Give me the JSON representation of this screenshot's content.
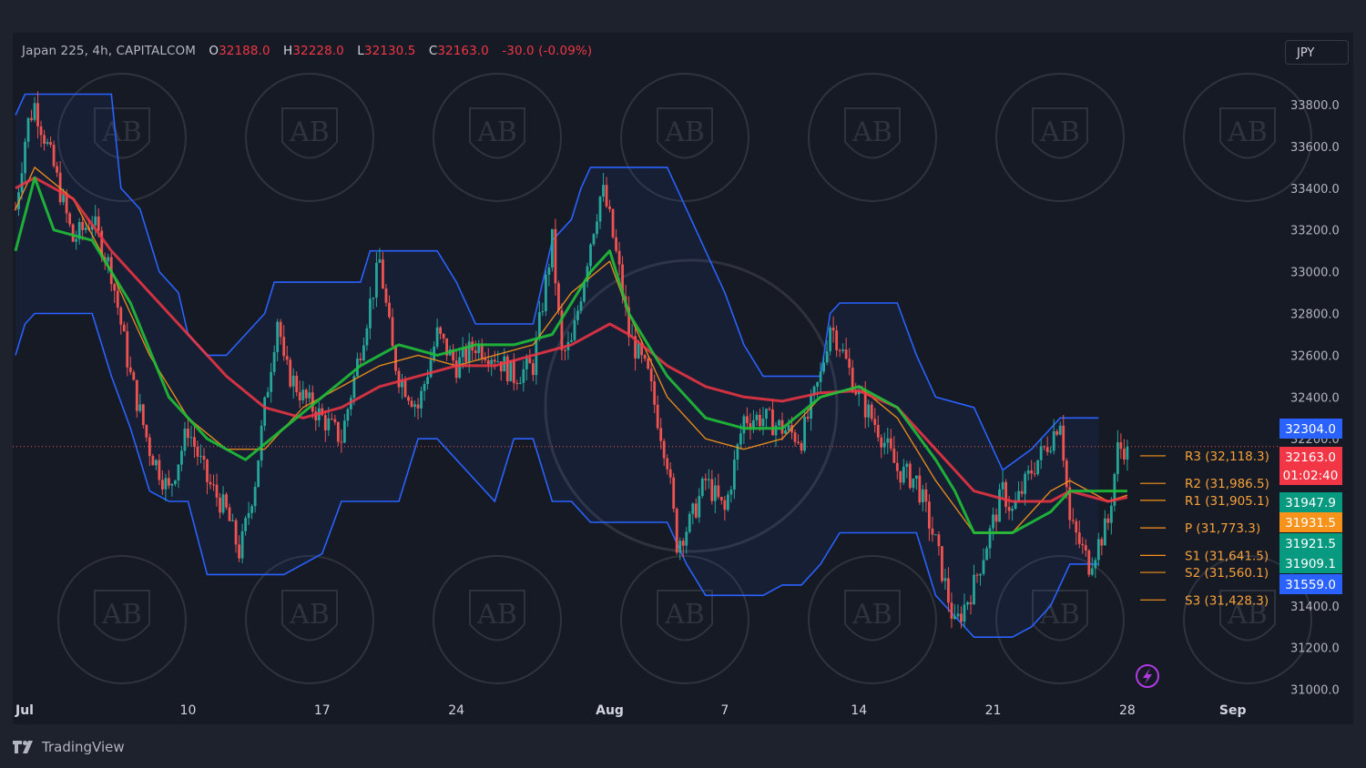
{
  "header": {
    "symbol": "Japan 225, 4h, CAPITALCOM",
    "o_label": "O",
    "o_value": "32188.0",
    "h_label": "H",
    "h_value": "32228.0",
    "l_label": "L",
    "l_value": "32130.5",
    "c_label": "C",
    "c_value": "32163.0",
    "change": "-30.0 (-0.09%)"
  },
  "currency_button": "JPY",
  "brand": "TradingView",
  "colors": {
    "background": "#161a25",
    "up": "#26a69a",
    "down": "#ef5350",
    "channel": "#2962ff",
    "ema_fast": "#089981",
    "ema_slow": "#f23645",
    "ma_orange": "#f7931a",
    "pivot": "#f7931a",
    "text": "#b2b5be"
  },
  "chart_data": {
    "type": "candlestick",
    "timeframe": "4h",
    "ylim": [
      31000,
      33900
    ],
    "y_ticks": [
      "33800.0",
      "33600.0",
      "33400.0",
      "33200.0",
      "33000.0",
      "32800.0",
      "32600.0",
      "32400.0",
      "32200.0",
      "32000.0",
      "31800.0",
      "31600.0",
      "31400.0",
      "31200.0",
      "31000.0"
    ],
    "x_ticks": [
      {
        "label": "Jul",
        "day": 0
      },
      {
        "label": "10",
        "day": 9
      },
      {
        "label": "17",
        "day": 16
      },
      {
        "label": "24",
        "day": 23
      },
      {
        "label": "Aug",
        "day": 31
      },
      {
        "label": "7",
        "day": 37
      },
      {
        "label": "14",
        "day": 44
      },
      {
        "label": "21",
        "day": 51
      },
      {
        "label": "28",
        "day": 58
      },
      {
        "label": "Sep",
        "day": 63.5
      }
    ],
    "path_points": [
      [
        0,
        33300
      ],
      [
        0.6,
        33700
      ],
      [
        1,
        33800
      ],
      [
        2,
        33500
      ],
      [
        3,
        33150
      ],
      [
        4,
        33250
      ],
      [
        5,
        33000
      ],
      [
        6,
        32500
      ],
      [
        7,
        32150
      ],
      [
        8,
        31950
      ],
      [
        9,
        32250
      ],
      [
        10,
        32000
      ],
      [
        11,
        31850
      ],
      [
        11.7,
        31650
      ],
      [
        12.5,
        32000
      ],
      [
        13,
        32350
      ],
      [
        13.7,
        32800
      ],
      [
        14,
        32550
      ],
      [
        15,
        32400
      ],
      [
        16,
        32300
      ],
      [
        17,
        32200
      ],
      [
        17.8,
        32550
      ],
      [
        18.5,
        32850
      ],
      [
        19,
        33050
      ],
      [
        19.7,
        32600
      ],
      [
        20,
        32500
      ],
      [
        21,
        32350
      ],
      [
        22,
        32700
      ],
      [
        23,
        32550
      ],
      [
        24,
        32650
      ],
      [
        25,
        32600
      ],
      [
        26,
        32500
      ],
      [
        27,
        32550
      ],
      [
        28,
        33150
      ],
      [
        28.5,
        32600
      ],
      [
        29,
        32650
      ],
      [
        30,
        33150
      ],
      [
        30.6,
        33400
      ],
      [
        31,
        33250
      ],
      [
        31.5,
        33000
      ],
      [
        32,
        32700
      ],
      [
        33,
        32500
      ],
      [
        34,
        32100
      ],
      [
        34.5,
        31700
      ],
      [
        35.2,
        31800
      ],
      [
        36,
        32000
      ],
      [
        37,
        31850
      ],
      [
        38,
        32300
      ],
      [
        39,
        32300
      ],
      [
        40,
        32250
      ],
      [
        41,
        32200
      ],
      [
        42,
        32500
      ],
      [
        42.5,
        32750
      ],
      [
        43,
        32650
      ],
      [
        44,
        32400
      ],
      [
        45,
        32250
      ],
      [
        46,
        32050
      ],
      [
        47,
        32000
      ],
      [
        48,
        31700
      ],
      [
        49,
        31300
      ],
      [
        50,
        31500
      ],
      [
        51,
        31800
      ],
      [
        51.5,
        31950
      ],
      [
        52,
        31850
      ],
      [
        53,
        32050
      ],
      [
        54,
        32200
      ],
      [
        54.5,
        32300
      ],
      [
        55,
        31800
      ],
      [
        56,
        31600
      ],
      [
        57,
        31800
      ],
      [
        57.5,
        32150
      ],
      [
        58,
        32163
      ]
    ],
    "ema_fast": [
      [
        0,
        33100
      ],
      [
        1,
        33450
      ],
      [
        2,
        33200
      ],
      [
        4,
        33150
      ],
      [
        6,
        32850
      ],
      [
        8,
        32400
      ],
      [
        10,
        32200
      ],
      [
        12,
        32100
      ],
      [
        14,
        32250
      ],
      [
        16,
        32400
      ],
      [
        18,
        32550
      ],
      [
        20,
        32650
      ],
      [
        22,
        32600
      ],
      [
        24,
        32650
      ],
      [
        26,
        32650
      ],
      [
        28,
        32700
      ],
      [
        29,
        32850
      ],
      [
        30,
        33000
      ],
      [
        31,
        33100
      ],
      [
        32,
        32800
      ],
      [
        34,
        32500
      ],
      [
        36,
        32300
      ],
      [
        38,
        32250
      ],
      [
        40,
        32250
      ],
      [
        42,
        32400
      ],
      [
        44,
        32450
      ],
      [
        46,
        32350
      ],
      [
        48,
        32100
      ],
      [
        49,
        31950
      ],
      [
        50,
        31750
      ],
      [
        52,
        31750
      ],
      [
        54,
        31850
      ],
      [
        55,
        31950
      ],
      [
        57,
        31950
      ],
      [
        58,
        31950
      ]
    ],
    "ema_slow": [
      [
        0,
        33400
      ],
      [
        1,
        33450
      ],
      [
        3,
        33350
      ],
      [
        5,
        33100
      ],
      [
        7,
        32900
      ],
      [
        9,
        32700
      ],
      [
        11,
        32500
      ],
      [
        13,
        32350
      ],
      [
        15,
        32300
      ],
      [
        17,
        32350
      ],
      [
        19,
        32450
      ],
      [
        21,
        32500
      ],
      [
        23,
        32550
      ],
      [
        25,
        32550
      ],
      [
        27,
        32600
      ],
      [
        29,
        32650
      ],
      [
        31,
        32750
      ],
      [
        32,
        32700
      ],
      [
        34,
        32550
      ],
      [
        36,
        32450
      ],
      [
        38,
        32400
      ],
      [
        40,
        32380
      ],
      [
        42,
        32420
      ],
      [
        44,
        32430
      ],
      [
        46,
        32350
      ],
      [
        48,
        32150
      ],
      [
        50,
        31950
      ],
      [
        52,
        31900
      ],
      [
        54,
        31900
      ],
      [
        55,
        31950
      ],
      [
        57,
        31900
      ],
      [
        58,
        31920
      ]
    ],
    "ma_orange": [
      [
        0,
        33300
      ],
      [
        1,
        33500
      ],
      [
        3,
        33350
      ],
      [
        5,
        33000
      ],
      [
        7,
        32600
      ],
      [
        9,
        32300
      ],
      [
        11,
        32150
      ],
      [
        13,
        32150
      ],
      [
        15,
        32350
      ],
      [
        17,
        32450
      ],
      [
        19,
        32550
      ],
      [
        21,
        32600
      ],
      [
        23,
        32550
      ],
      [
        25,
        32600
      ],
      [
        27,
        32650
      ],
      [
        29,
        32900
      ],
      [
        31,
        33050
      ],
      [
        32,
        32800
      ],
      [
        34,
        32400
      ],
      [
        36,
        32200
      ],
      [
        38,
        32150
      ],
      [
        40,
        32200
      ],
      [
        42,
        32400
      ],
      [
        44,
        32450
      ],
      [
        46,
        32300
      ],
      [
        48,
        32000
      ],
      [
        50,
        31750
      ],
      [
        52,
        31750
      ],
      [
        54,
        31950
      ],
      [
        55,
        32000
      ],
      [
        57,
        31900
      ],
      [
        58,
        31930
      ]
    ],
    "channel_upper": [
      [
        0,
        33750
      ],
      [
        0.5,
        33850
      ],
      [
        5,
        33850
      ],
      [
        5.5,
        33400
      ],
      [
        6.5,
        33300
      ],
      [
        7.5,
        33000
      ],
      [
        8.5,
        32900
      ],
      [
        9,
        32700
      ],
      [
        10,
        32600
      ],
      [
        11,
        32600
      ],
      [
        12,
        32700
      ],
      [
        13,
        32800
      ],
      [
        13.5,
        32950
      ],
      [
        14,
        32950
      ],
      [
        18,
        32950
      ],
      [
        18.5,
        33100
      ],
      [
        22,
        33100
      ],
      [
        23,
        32950
      ],
      [
        24,
        32750
      ],
      [
        27,
        32750
      ],
      [
        27.5,
        32950
      ],
      [
        28,
        33150
      ],
      [
        29,
        33250
      ],
      [
        29.5,
        33400
      ],
      [
        30,
        33500
      ],
      [
        34,
        33500
      ],
      [
        35,
        33300
      ],
      [
        36,
        33100
      ],
      [
        37,
        32900
      ],
      [
        38,
        32650
      ],
      [
        39,
        32500
      ],
      [
        42,
        32500
      ],
      [
        42.5,
        32800
      ],
      [
        43,
        32850
      ],
      [
        46,
        32850
      ],
      [
        47,
        32600
      ],
      [
        48,
        32400
      ],
      [
        50,
        32350
      ],
      [
        51,
        32150
      ],
      [
        51.5,
        32050
      ],
      [
        53,
        32150
      ],
      [
        54.5,
        32300
      ],
      [
        55.5,
        32300
      ],
      [
        56.5,
        32300
      ]
    ],
    "channel_lower": [
      [
        0,
        32600
      ],
      [
        0.5,
        32750
      ],
      [
        1,
        32800
      ],
      [
        4,
        32800
      ],
      [
        5,
        32500
      ],
      [
        6,
        32250
      ],
      [
        7,
        31950
      ],
      [
        8,
        31900
      ],
      [
        9,
        31900
      ],
      [
        10,
        31550
      ],
      [
        13,
        31550
      ],
      [
        14,
        31550
      ],
      [
        15,
        31600
      ],
      [
        16,
        31650
      ],
      [
        17,
        31900
      ],
      [
        18,
        31900
      ],
      [
        20,
        31900
      ],
      [
        21,
        32200
      ],
      [
        22,
        32200
      ],
      [
        25,
        31900
      ],
      [
        26,
        32200
      ],
      [
        27,
        32200
      ],
      [
        28,
        31900
      ],
      [
        29,
        31900
      ],
      [
        30,
        31800
      ],
      [
        31,
        31800
      ],
      [
        34,
        31800
      ],
      [
        35,
        31600
      ],
      [
        36,
        31450
      ],
      [
        39,
        31450
      ],
      [
        40,
        31500
      ],
      [
        41,
        31500
      ],
      [
        42,
        31600
      ],
      [
        43,
        31750
      ],
      [
        46,
        31750
      ],
      [
        47,
        31750
      ],
      [
        48,
        31450
      ],
      [
        49,
        31350
      ],
      [
        50,
        31250
      ],
      [
        52,
        31250
      ],
      [
        53,
        31300
      ],
      [
        54,
        31400
      ],
      [
        55,
        31600
      ],
      [
        56.5,
        31600
      ]
    ],
    "pivots": [
      {
        "label": "R3 (32,118.3)",
        "value": 32118.3
      },
      {
        "label": "R2 (31,986.5)",
        "value": 31986.5
      },
      {
        "label": "R1 (31,905.1)",
        "value": 31905.1
      },
      {
        "label": "P (31,773.3)",
        "value": 31773.3
      },
      {
        "label": "S1 (31,641.5)",
        "value": 31641.5
      },
      {
        "label": "S2 (31,560.1)",
        "value": 31560.1
      },
      {
        "label": "S3 (31,428.3)",
        "value": 31428.3
      }
    ],
    "price_tags": [
      {
        "text": "32304.0",
        "value": 32304.0,
        "color": "#2962ff"
      },
      {
        "text": "32163.0",
        "value": 32163.0,
        "color": "#f23645",
        "sub": "01:02:40"
      },
      {
        "text": "31947.9",
        "value": 31947.9,
        "color": "#089981"
      },
      {
        "text": "31931.5",
        "value": 31931.5,
        "color": "#f7931a"
      },
      {
        "text": "31921.5",
        "value": 31921.5,
        "color": "#089981"
      },
      {
        "text": "31909.1",
        "value": 31909.1,
        "color": "#089981"
      },
      {
        "text": "31559.0",
        "value": 31559.0,
        "color": "#2962ff"
      }
    ],
    "last_price": 32163.0,
    "grid": false,
    "watermark": "AB"
  }
}
